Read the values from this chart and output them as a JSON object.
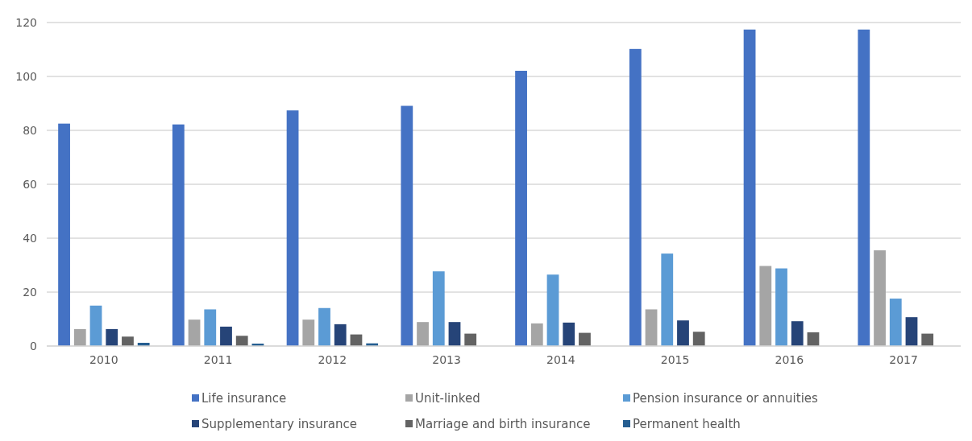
{
  "chart_data": {
    "type": "bar",
    "categories": [
      "2010",
      "2011",
      "2012",
      "2013",
      "2014",
      "2015",
      "2016",
      "2017"
    ],
    "series": [
      {
        "name": "Life insurance",
        "color": "#4472c4",
        "values": [
          82.5,
          82.2,
          87.4,
          89.1,
          102.1,
          110.2,
          117.4,
          117.4
        ]
      },
      {
        "name": "Unit-linked",
        "color": "#a5a5a5",
        "values": [
          6.3,
          9.8,
          9.8,
          8.9,
          8.4,
          13.6,
          29.7,
          35.5
        ]
      },
      {
        "name": "Pension insurance or annuities",
        "color": "#5b9bd5",
        "values": [
          15,
          13.6,
          14.1,
          27.7,
          26.5,
          34.3,
          28.8,
          17.6
        ]
      },
      {
        "name": "Supplementary insurance",
        "color": "#264478",
        "values": [
          6.3,
          7.2,
          8.1,
          8.9,
          8.7,
          9.5,
          9.2,
          10.7
        ]
      },
      {
        "name": "Marriage and birth insurance",
        "color": "#636363",
        "values": [
          3.5,
          3.8,
          4.3,
          4.6,
          4.9,
          5.3,
          5.1,
          4.6
        ]
      },
      {
        "name": "Permanent health",
        "color": "#255e91",
        "values": [
          1.2,
          0.9,
          1.0,
          null,
          null,
          null,
          null,
          null
        ]
      }
    ],
    "ylim": [
      0,
      120
    ],
    "yticks": [
      0,
      20,
      40,
      60,
      80,
      100,
      120
    ],
    "grid": "y",
    "legend": "bottom"
  }
}
